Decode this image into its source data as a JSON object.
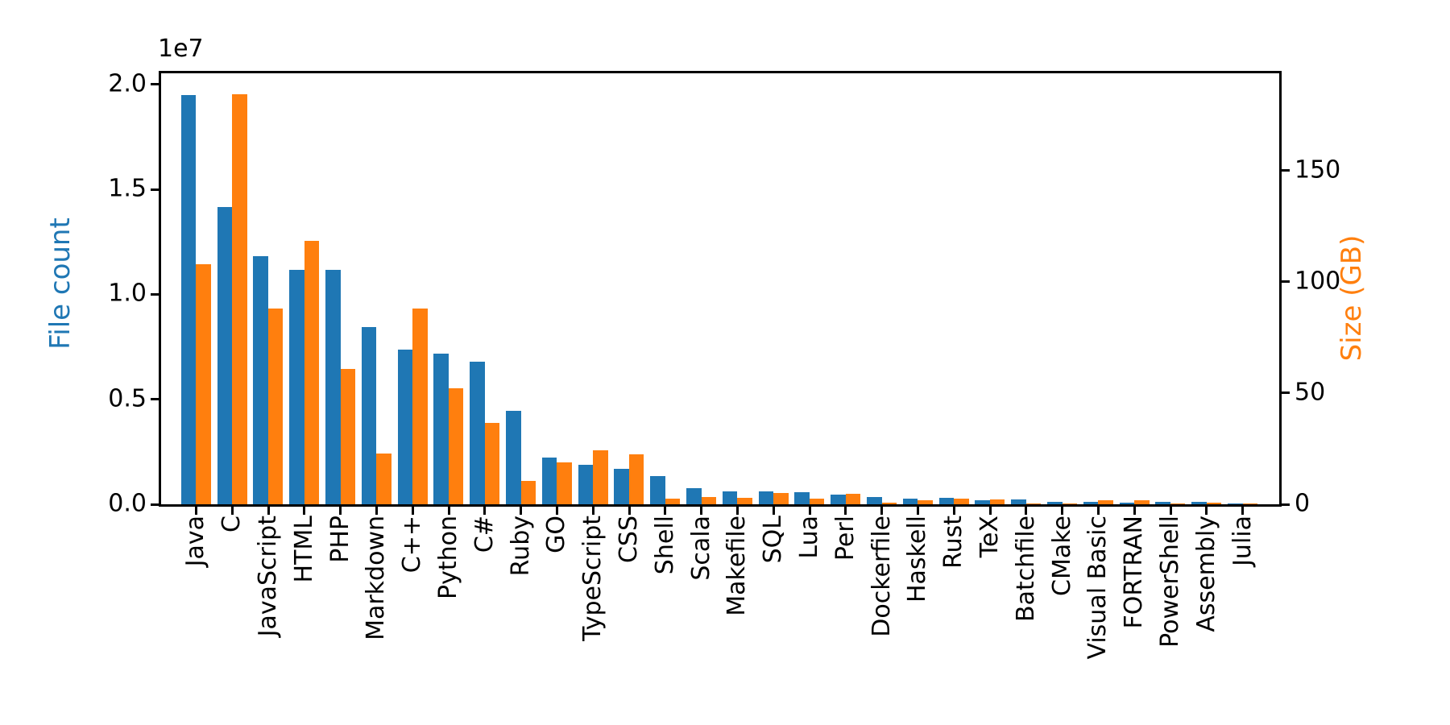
{
  "chart_data": {
    "type": "bar",
    "title": "",
    "orientation": "vertical-grouped-dual-axis",
    "grid": false,
    "legend": false,
    "categories": [
      "Java",
      "C",
      "JavaScript",
      "HTML",
      "PHP",
      "Markdown",
      "C++",
      "Python",
      "C#",
      "Ruby",
      "GO",
      "TypeScript",
      "CSS",
      "Shell",
      "Scala",
      "Makefile",
      "SQL",
      "Lua",
      "Perl",
      "Dockerfile",
      "Haskell",
      "Rust",
      "TeX",
      "Batchfile",
      "CMake",
      "Visual Basic",
      "FORTRAN",
      "PowerShell",
      "Assembly",
      "Julia"
    ],
    "series": [
      {
        "name": "File count",
        "axis": "left",
        "color": "#1f77b4",
        "values": [
          19500000,
          14150000,
          11800000,
          11170000,
          11170000,
          8430000,
          7380000,
          7190000,
          6780000,
          4440000,
          2230000,
          1870000,
          1700000,
          1340000,
          770000,
          610000,
          610000,
          570000,
          460000,
          330000,
          280000,
          290000,
          190000,
          220000,
          130000,
          130000,
          90000,
          130000,
          100000,
          40000
        ]
      },
      {
        "name": "Size (GB)",
        "axis": "right",
        "color": "#ff7f0e",
        "values": [
          108,
          184.5,
          88,
          118.5,
          61,
          23,
          88,
          52,
          36.6,
          10.4,
          18.7,
          24.2,
          22.5,
          2.5,
          3.4,
          2.8,
          5.0,
          2.4,
          4.6,
          0.6,
          1.8,
          2.6,
          2.1,
          0.2,
          0.2,
          1.7,
          1.7,
          0.2,
          0.85,
          0.2
        ]
      }
    ],
    "left_axis": {
      "label": "File count",
      "label_color": "#1f77b4",
      "offset_text": "1e7",
      "ticks": [
        {
          "label": "0.0",
          "value": 0
        },
        {
          "label": "0.5",
          "value": 5000000
        },
        {
          "label": "1.0",
          "value": 10000000
        },
        {
          "label": "1.5",
          "value": 15000000
        },
        {
          "label": "2.0",
          "value": 20000000
        }
      ],
      "range": [
        0,
        20526000
      ]
    },
    "right_axis": {
      "label": "Size (GB)",
      "label_color": "#ff7f0e",
      "ticks": [
        {
          "label": "0",
          "value": 0
        },
        {
          "label": "50",
          "value": 50
        },
        {
          "label": "100",
          "value": 100
        },
        {
          "label": "150",
          "value": 150
        }
      ],
      "range": [
        0,
        193.8
      ]
    },
    "x_axis": {
      "tick_label_rotation_deg": 90
    }
  }
}
